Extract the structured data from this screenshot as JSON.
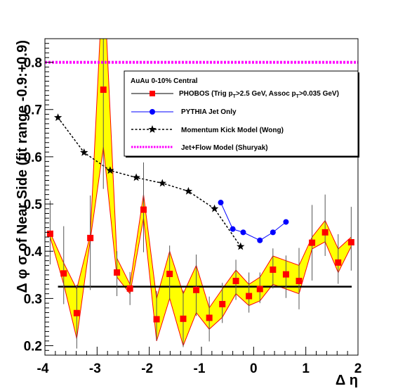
{
  "chart_data": {
    "type": "scatter",
    "xlabel": "Δ η",
    "ylabel": "Δ φ σ of Near Side (fit range -0.9:+0.9)",
    "xlim": [
      -4,
      2
    ],
    "ylim": [
      0.18,
      0.85
    ],
    "x_ticks": [
      "-4",
      "-3",
      "-2",
      "-1",
      "0",
      "1",
      "2"
    ],
    "y_ticks": [
      "0.2",
      "0.3",
      "0.4",
      "0.5",
      "0.6",
      "0.7",
      "0.8"
    ],
    "legend": {
      "title": "AuAu 0-10% Central",
      "entries": [
        {
          "label": "PHOBOS (Trig pT>2.5 GeV, Assoc pT>0.035 GeV)",
          "main": "PHOBOS (Trig p",
          "sub1": "T",
          "mid": ">2.5 GeV, Assoc p",
          "sub2": "T",
          "end": ">0.035 GeV)"
        },
        {
          "label": "PYTHIA Jet Only"
        },
        {
          "label": "Momentum Kick Model (Wong)"
        },
        {
          "label": "Jet+Flow Model (Shuryak)"
        }
      ]
    },
    "colors": {
      "phobos": "#ff0000",
      "band_fill": "#ffff00",
      "pythia": "#0000ff",
      "wong": "#000000",
      "shuryak": "#ff00ff",
      "reference": "#000000"
    },
    "series": [
      {
        "name": "PHOBOS (Trig pT>2.5 GeV, Assoc pT>0.035 GeV)",
        "points": [
          {
            "x": -3.9,
            "y": 0.437,
            "err_lo": 0.065,
            "err_hi": 0.07,
            "band_lo": 0.43,
            "band_hi": 0.44
          },
          {
            "x": -3.64,
            "y": 0.353,
            "err_lo": 0.065,
            "err_hi": 0.1,
            "band_lo": 0.33,
            "band_hi": 0.375
          },
          {
            "x": -3.39,
            "y": 0.269,
            "err_lo": 0.075,
            "err_hi": 0.06,
            "band_lo": 0.215,
            "band_hi": 0.32
          },
          {
            "x": -3.13,
            "y": 0.428,
            "err_lo": 0.11,
            "err_hi": 0.09,
            "band_lo": 0.425,
            "band_hi": 0.435
          },
          {
            "x": -2.88,
            "y": 0.742,
            "err_lo": 0.21,
            "err_hi": 0.15,
            "band_lo": 0.62,
            "band_hi": 1.0
          },
          {
            "x": -2.62,
            "y": 0.355,
            "err_lo": 0.05,
            "err_hi": 0.045,
            "band_lo": 0.345,
            "band_hi": 0.385
          },
          {
            "x": -2.37,
            "y": 0.321,
            "err_lo": 0.035,
            "err_hi": 0.035,
            "band_lo": 0.31,
            "band_hi": 0.33
          },
          {
            "x": -2.11,
            "y": 0.488,
            "err_lo": 0.09,
            "err_hi": 0.1,
            "band_lo": 0.47,
            "band_hi": 0.52
          },
          {
            "x": -1.86,
            "y": 0.256,
            "err_lo": 0.045,
            "err_hi": 0.06,
            "band_lo": 0.21,
            "band_hi": 0.3
          },
          {
            "x": -1.61,
            "y": 0.352,
            "err_lo": 0.055,
            "err_hi": 0.06,
            "band_lo": 0.3,
            "band_hi": 0.4
          },
          {
            "x": -1.35,
            "y": 0.257,
            "err_lo": 0.06,
            "err_hi": 0.06,
            "band_lo": 0.2,
            "band_hi": 0.31
          },
          {
            "x": -1.1,
            "y": 0.318,
            "err_lo": 0.055,
            "err_hi": 0.075,
            "band_lo": 0.27,
            "band_hi": 0.37
          },
          {
            "x": -0.85,
            "y": 0.259,
            "err_lo": 0.05,
            "err_hi": 0.045,
            "band_lo": 0.235,
            "band_hi": 0.28
          },
          {
            "x": -0.6,
            "y": 0.288,
            "err_lo": 0.04,
            "err_hi": 0.045,
            "band_lo": 0.26,
            "band_hi": 0.32
          },
          {
            "x": -0.34,
            "y": 0.337,
            "err_lo": 0.04,
            "err_hi": 0.045,
            "band_lo": 0.31,
            "band_hi": 0.36
          },
          {
            "x": -0.09,
            "y": 0.305,
            "err_lo": 0.035,
            "err_hi": 0.05,
            "band_lo": 0.285,
            "band_hi": 0.33
          },
          {
            "x": 0.12,
            "y": 0.32,
            "err_lo": 0.03,
            "err_hi": 0.035,
            "band_lo": 0.295,
            "band_hi": 0.345
          },
          {
            "x": 0.37,
            "y": 0.361,
            "err_lo": 0.04,
            "err_hi": 0.045,
            "band_lo": 0.33,
            "band_hi": 0.39
          },
          {
            "x": 0.62,
            "y": 0.351,
            "err_lo": 0.05,
            "err_hi": 0.04,
            "band_lo": 0.32,
            "band_hi": 0.38
          },
          {
            "x": 0.87,
            "y": 0.337,
            "err_lo": 0.06,
            "err_hi": 0.07,
            "band_lo": 0.31,
            "band_hi": 0.37
          },
          {
            "x": 1.12,
            "y": 0.418,
            "err_lo": 0.08,
            "err_hi": 0.08,
            "band_lo": 0.405,
            "band_hi": 0.43
          },
          {
            "x": 1.37,
            "y": 0.44,
            "err_lo": 0.05,
            "err_hi": 0.08,
            "band_lo": 0.42,
            "band_hi": 0.465
          },
          {
            "x": 1.62,
            "y": 0.376,
            "err_lo": 0.045,
            "err_hi": 0.06,
            "band_lo": 0.355,
            "band_hi": 0.405
          },
          {
            "x": 1.87,
            "y": 0.419,
            "err_lo": 0.06,
            "err_hi": 0.075,
            "band_lo": 0.41,
            "band_hi": 0.43
          }
        ]
      },
      {
        "name": "PYTHIA Jet Only",
        "x": [
          -0.63,
          -0.4,
          -0.2,
          0.12,
          0.37,
          0.62
        ],
        "y": [
          0.503,
          0.447,
          0.44,
          0.423,
          0.44,
          0.462
        ]
      },
      {
        "name": "Momentum Kick Model (Wong)",
        "x": [
          -3.75,
          -3.25,
          -2.75,
          -2.25,
          -1.75,
          -1.25,
          -0.75,
          -0.25
        ],
        "y": [
          0.683,
          0.609,
          0.571,
          0.556,
          0.544,
          0.527,
          0.49,
          0.41
        ]
      },
      {
        "name": "Jet+Flow Model (Shuryak)",
        "y": 0.8
      }
    ],
    "reference_line": {
      "y": 0.325,
      "x": [
        -3.75,
        1.88
      ]
    }
  }
}
